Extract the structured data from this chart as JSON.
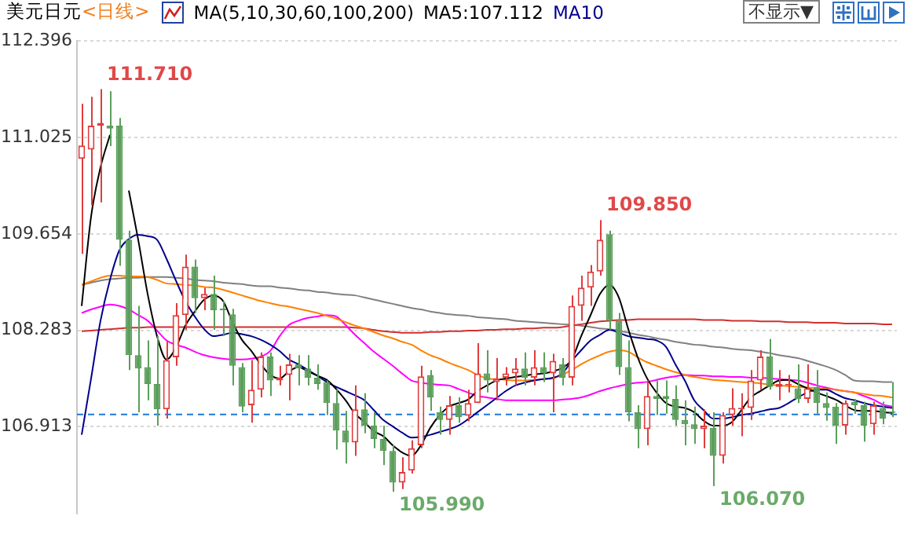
{
  "chart_data": {
    "type": "candlestick",
    "title": "美元日元",
    "subtitle": "<日线>",
    "legend_title": "MA(5,10,30,60,100,200)",
    "legend": "top left",
    "grid": "y",
    "tick_labels": "y",
    "marker": "none",
    "ylim": [
      105.68,
      112.396
    ],
    "yticks": [
      106.913,
      108.283,
      109.654,
      111.025,
      112.396
    ],
    "annotations": [
      "不显示▼",
      "111.710",
      "109.850",
      "105.990",
      "106.070"
    ],
    "ref_lines": [
      {
        "axis": "y",
        "value": 107.1,
        "color": "#1e78d8",
        "line_style": "dashed"
      }
    ],
    "categories": [
      null,
      null,
      null,
      null,
      null,
      null,
      null,
      null,
      null,
      null,
      null,
      null,
      null,
      null,
      null,
      null,
      null,
      null,
      null,
      null,
      null,
      null,
      null,
      null,
      null,
      null,
      null,
      null,
      null,
      null,
      null,
      null,
      null,
      null,
      null,
      null,
      null,
      null,
      null,
      null,
      null,
      null,
      null,
      null,
      null,
      null,
      null,
      null,
      null,
      null,
      null,
      null,
      null,
      null,
      null,
      null,
      null,
      null,
      null,
      null,
      null,
      null,
      null,
      null,
      null,
      null,
      null,
      null,
      null,
      null,
      null,
      null,
      null,
      null,
      null,
      null,
      null,
      null,
      null,
      null,
      null,
      null,
      null,
      null,
      null,
      null,
      null
    ],
    "ohlc": [
      [
        110.72,
        111.5,
        109.37,
        110.91
      ],
      [
        110.85,
        111.6,
        110.06,
        111.19
      ],
      [
        111.19,
        111.71,
        110.1,
        111.23
      ],
      [
        111.19,
        111.68,
        110.9,
        111.15
      ],
      [
        111.19,
        111.3,
        109.2,
        109.57
      ],
      [
        109.57,
        109.7,
        107.72,
        107.93
      ],
      [
        107.93,
        108.63,
        107.12,
        107.74
      ],
      [
        107.76,
        108.14,
        107.29,
        107.52
      ],
      [
        107.52,
        108.2,
        106.93,
        107.16
      ],
      [
        107.16,
        108.14,
        107.03,
        107.86
      ],
      [
        107.9,
        108.67,
        107.78,
        108.5
      ],
      [
        108.5,
        109.36,
        108.29,
        109.19
      ],
      [
        109.19,
        109.29,
        108.53,
        108.74
      ],
      [
        108.74,
        108.89,
        108.57,
        108.8
      ],
      [
        108.8,
        109.06,
        108.29,
        108.57
      ],
      [
        108.59,
        108.7,
        108.2,
        108.57
      ],
      [
        108.51,
        108.59,
        107.5,
        107.78
      ],
      [
        107.76,
        107.82,
        107.12,
        107.2
      ],
      [
        107.22,
        107.86,
        106.97,
        107.44
      ],
      [
        107.44,
        107.97,
        107.33,
        107.91
      ],
      [
        107.91,
        107.97,
        107.35,
        107.57
      ],
      [
        107.57,
        107.78,
        107.5,
        107.61
      ],
      [
        107.65,
        107.95,
        107.29,
        107.8
      ],
      [
        107.8,
        107.93,
        107.5,
        107.74
      ],
      [
        107.74,
        107.93,
        107.5,
        107.61
      ],
      [
        107.61,
        107.8,
        107.44,
        107.52
      ],
      [
        107.55,
        107.57,
        107.08,
        107.25
      ],
      [
        107.25,
        107.44,
        106.59,
        106.86
      ],
      [
        106.86,
        107.14,
        106.39,
        106.69
      ],
      [
        106.69,
        107.5,
        106.5,
        107.16
      ],
      [
        107.16,
        107.39,
        106.82,
        106.93
      ],
      [
        106.93,
        107.12,
        106.61,
        106.74
      ],
      [
        106.74,
        106.93,
        106.37,
        106.57
      ],
      [
        106.57,
        106.65,
        105.99,
        106.12
      ],
      [
        106.12,
        106.48,
        106.03,
        106.27
      ],
      [
        106.29,
        106.72,
        106.25,
        106.61
      ],
      [
        106.65,
        107.78,
        106.61,
        107.63
      ],
      [
        107.65,
        107.72,
        107.14,
        107.33
      ],
      [
        107.12,
        107.2,
        106.8,
        107.01
      ],
      [
        107.01,
        107.35,
        106.8,
        107.22
      ],
      [
        107.22,
        107.33,
        106.97,
        107.05
      ],
      [
        107.07,
        107.44,
        106.99,
        107.25
      ],
      [
        107.25,
        108.1,
        107.25,
        107.67
      ],
      [
        107.67,
        108.0,
        107.4,
        107.57
      ],
      [
        107.55,
        107.89,
        107.29,
        107.6
      ],
      [
        107.61,
        107.76,
        107.5,
        107.67
      ],
      [
        107.67,
        107.89,
        107.5,
        107.74
      ],
      [
        107.74,
        107.97,
        107.5,
        107.61
      ],
      [
        107.61,
        108.0,
        107.5,
        107.76
      ],
      [
        107.76,
        107.97,
        107.55,
        107.67
      ],
      [
        107.67,
        107.95,
        107.12,
        107.85
      ],
      [
        107.8,
        107.89,
        107.5,
        107.61
      ],
      [
        107.61,
        108.78,
        107.5,
        108.63
      ],
      [
        108.63,
        109.06,
        108.42,
        108.89
      ],
      [
        108.89,
        109.21,
        108.63,
        109.12
      ],
      [
        109.12,
        109.85,
        109.06,
        109.57
      ],
      [
        109.65,
        109.7,
        108.29,
        108.42
      ],
      [
        108.42,
        108.53,
        107.65,
        107.76
      ],
      [
        107.76,
        108.14,
        106.99,
        107.12
      ],
      [
        107.12,
        107.22,
        106.61,
        106.88
      ],
      [
        106.88,
        107.57,
        106.65,
        107.35
      ],
      [
        107.35,
        107.57,
        107.08,
        107.31
      ],
      [
        107.35,
        107.57,
        107.1,
        107.31
      ],
      [
        107.31,
        107.5,
        106.93,
        107.01
      ],
      [
        107.01,
        107.29,
        106.65,
        106.95
      ],
      [
        106.95,
        107.2,
        106.67,
        106.88
      ],
      [
        106.88,
        107.16,
        106.61,
        106.93
      ],
      [
        106.9,
        107.12,
        106.07,
        106.5
      ],
      [
        106.5,
        107.12,
        106.39,
        107.08
      ],
      [
        107.08,
        107.46,
        106.93,
        107.18
      ],
      [
        107.16,
        107.39,
        106.78,
        107.18
      ],
      [
        107.18,
        107.72,
        107.01,
        107.57
      ],
      [
        107.57,
        108.0,
        107.44,
        107.91
      ],
      [
        107.91,
        108.16,
        107.44,
        107.48
      ],
      [
        107.48,
        107.72,
        107.29,
        107.52
      ],
      [
        107.5,
        107.65,
        107.4,
        107.52
      ],
      [
        107.46,
        107.8,
        107.25,
        107.31
      ],
      [
        107.31,
        107.8,
        107.25,
        107.46
      ],
      [
        107.48,
        107.72,
        107.1,
        107.25
      ],
      [
        107.25,
        107.4,
        107.0,
        107.18
      ],
      [
        107.2,
        107.25,
        106.67,
        106.93
      ],
      [
        106.93,
        107.29,
        106.8,
        107.25
      ],
      [
        107.27,
        107.31,
        107.1,
        107.22
      ],
      [
        107.22,
        107.27,
        106.7,
        106.93
      ],
      [
        106.95,
        107.27,
        106.8,
        107.22
      ],
      [
        107.18,
        107.27,
        106.95,
        107.03
      ],
      [
        107.12,
        107.55,
        107.05,
        107.11
      ]
    ],
    "series": [
      {
        "type": "line",
        "name": "MA5:107.112",
        "color": "#000000",
        "values": [
          108.63,
          109.9,
          110.6,
          111.06,
          null,
          110.27,
          109.57,
          108.8,
          108.2,
          107.87,
          108.04,
          108.35,
          108.55,
          108.72,
          108.78,
          108.7,
          108.4,
          108.15,
          107.99,
          107.8,
          107.65,
          107.6,
          107.7,
          107.76,
          107.7,
          107.64,
          107.58,
          107.45,
          107.29,
          107.1,
          106.98,
          106.85,
          106.78,
          106.65,
          106.55,
          106.5,
          106.65,
          106.9,
          107.08,
          107.2,
          107.25,
          107.3,
          107.42,
          107.5,
          107.57,
          107.6,
          107.62,
          107.64,
          107.66,
          107.67,
          107.7,
          107.75,
          107.87,
          108.2,
          108.5,
          108.8,
          108.93,
          108.75,
          108.3,
          107.9,
          107.6,
          107.4,
          107.25,
          107.2,
          107.18,
          107.12,
          107.0,
          106.93,
          106.93,
          106.98,
          107.15,
          107.33,
          107.42,
          107.5,
          107.57,
          107.58,
          107.52,
          107.46,
          107.4,
          107.35,
          107.3,
          107.22,
          107.15,
          107.14,
          107.14,
          107.12,
          107.11
        ]
      },
      {
        "type": "line",
        "name": "MA10",
        "color": "#00008b",
        "values": [
          106.8,
          107.6,
          108.42,
          109.0,
          109.42,
          109.58,
          109.64,
          109.62,
          109.57,
          109.3,
          108.99,
          108.7,
          108.48,
          108.3,
          108.2,
          108.22,
          108.25,
          108.23,
          108.2,
          108.15,
          108.08,
          107.99,
          107.87,
          107.8,
          107.72,
          107.64,
          107.55,
          107.48,
          107.42,
          107.36,
          107.29,
          107.15,
          107.01,
          106.92,
          106.83,
          106.76,
          106.77,
          106.8,
          106.84,
          106.88,
          106.93,
          107.02,
          107.12,
          107.22,
          107.32,
          107.42,
          107.5,
          107.54,
          107.57,
          107.59,
          107.61,
          107.67,
          107.85,
          108.0,
          108.14,
          108.22,
          108.29,
          108.25,
          108.2,
          108.18,
          108.16,
          108.14,
          108.05,
          107.8,
          107.57,
          107.29,
          107.15,
          107.03,
          107.03,
          107.05,
          107.08,
          107.1,
          107.13,
          107.16,
          107.18,
          107.25,
          107.33,
          107.4,
          107.44,
          107.44,
          107.38,
          107.32,
          107.29,
          107.25,
          107.22,
          107.2,
          107.18
        ]
      },
      {
        "type": "line",
        "color": "#ff8000",
        "values": [
          108.93,
          108.98,
          109.03,
          109.06,
          109.06,
          109.05,
          109.05,
          109.04,
          109.0,
          108.95,
          108.94,
          108.93,
          108.92,
          108.9,
          108.89,
          108.86,
          108.82,
          108.78,
          108.74,
          108.7,
          108.67,
          108.64,
          108.62,
          108.59,
          108.56,
          108.53,
          108.49,
          108.45,
          108.4,
          108.35,
          108.31,
          108.26,
          108.21,
          108.17,
          108.12,
          108.08,
          108.0,
          107.93,
          107.88,
          107.82,
          107.77,
          107.72,
          107.65,
          107.6,
          107.59,
          107.58,
          107.57,
          107.57,
          107.58,
          107.59,
          107.6,
          107.65,
          107.72,
          107.8,
          107.87,
          107.93,
          107.98,
          108.0,
          107.98,
          107.9,
          107.83,
          107.78,
          107.73,
          107.69,
          107.65,
          107.62,
          107.6,
          107.58,
          107.57,
          107.56,
          107.55,
          107.54,
          107.53,
          107.51,
          107.5,
          107.49,
          107.48,
          107.47,
          107.46,
          107.45,
          107.44,
          107.42,
          107.4,
          107.38,
          107.36,
          107.35,
          107.33
        ]
      },
      {
        "type": "line",
        "color": "#ff00ff",
        "values": [
          108.53,
          108.58,
          108.62,
          108.65,
          108.63,
          108.58,
          108.5,
          108.42,
          108.28,
          108.14,
          108.08,
          108.04,
          107.98,
          107.93,
          107.9,
          107.88,
          107.87,
          107.87,
          107.88,
          107.91,
          107.99,
          108.2,
          108.36,
          108.42,
          108.46,
          108.48,
          108.5,
          108.48,
          108.36,
          108.22,
          108.1,
          107.98,
          107.88,
          107.78,
          107.67,
          107.57,
          107.54,
          107.52,
          107.51,
          107.5,
          107.45,
          107.4,
          107.35,
          107.33,
          107.31,
          107.29,
          107.29,
          107.29,
          107.29,
          107.29,
          107.29,
          107.3,
          107.31,
          107.33,
          107.37,
          107.42,
          107.46,
          107.49,
          107.52,
          107.54,
          107.55,
          107.58,
          107.61,
          107.63,
          107.65,
          107.64,
          107.64,
          107.63,
          107.63,
          107.62,
          107.62,
          107.61,
          107.61,
          107.6,
          107.59,
          107.58,
          107.57,
          107.54,
          107.5,
          107.47,
          107.44,
          107.42,
          107.4,
          107.35,
          107.3,
          107.23,
          107.2
        ]
      },
      {
        "type": "line",
        "color": "#d03030",
        "values": [
          108.27,
          108.28,
          108.29,
          108.3,
          108.31,
          108.32,
          108.32,
          108.33,
          108.33,
          108.33,
          108.33,
          108.33,
          108.33,
          108.33,
          108.33,
          108.33,
          108.33,
          108.33,
          108.33,
          108.33,
          108.33,
          108.33,
          108.33,
          108.33,
          108.33,
          108.33,
          108.33,
          108.33,
          108.33,
          108.32,
          108.31,
          108.29,
          108.27,
          108.26,
          108.25,
          108.25,
          108.25,
          108.26,
          108.26,
          108.27,
          108.27,
          108.28,
          108.28,
          108.29,
          108.29,
          108.3,
          108.3,
          108.31,
          108.31,
          108.32,
          108.32,
          108.33,
          108.35,
          108.37,
          108.39,
          108.41,
          108.42,
          108.43,
          108.43,
          108.44,
          108.44,
          108.44,
          108.44,
          108.44,
          108.44,
          108.44,
          108.43,
          108.43,
          108.43,
          108.42,
          108.42,
          108.42,
          108.41,
          108.41,
          108.41,
          108.4,
          108.4,
          108.4,
          108.39,
          108.39,
          108.39,
          108.38,
          108.38,
          108.38,
          108.38,
          108.37,
          108.37
        ]
      },
      {
        "type": "line",
        "color": "#808080",
        "values": [
          108.93,
          108.96,
          108.99,
          109.01,
          109.02,
          109.03,
          109.03,
          109.04,
          109.04,
          109.04,
          109.03,
          109.02,
          109.0,
          108.99,
          108.98,
          108.96,
          108.95,
          108.94,
          108.92,
          108.91,
          108.91,
          108.89,
          108.88,
          108.86,
          108.85,
          108.83,
          108.82,
          108.8,
          108.79,
          108.78,
          108.75,
          108.72,
          108.69,
          108.66,
          108.63,
          108.6,
          108.58,
          108.55,
          108.53,
          108.51,
          108.5,
          108.49,
          108.47,
          108.46,
          108.45,
          108.44,
          108.42,
          108.41,
          108.4,
          108.39,
          108.38,
          108.37,
          108.36,
          108.35,
          108.33,
          108.31,
          108.3,
          108.28,
          108.25,
          108.22,
          108.2,
          108.17,
          108.15,
          108.12,
          108.1,
          108.08,
          108.07,
          108.05,
          108.04,
          108.02,
          108.01,
          108.0,
          107.98,
          107.96,
          107.93,
          107.91,
          107.89,
          107.85,
          107.81,
          107.77,
          107.72,
          107.65,
          107.57,
          107.56,
          107.56,
          107.55,
          107.55
        ]
      }
    ]
  }
}
